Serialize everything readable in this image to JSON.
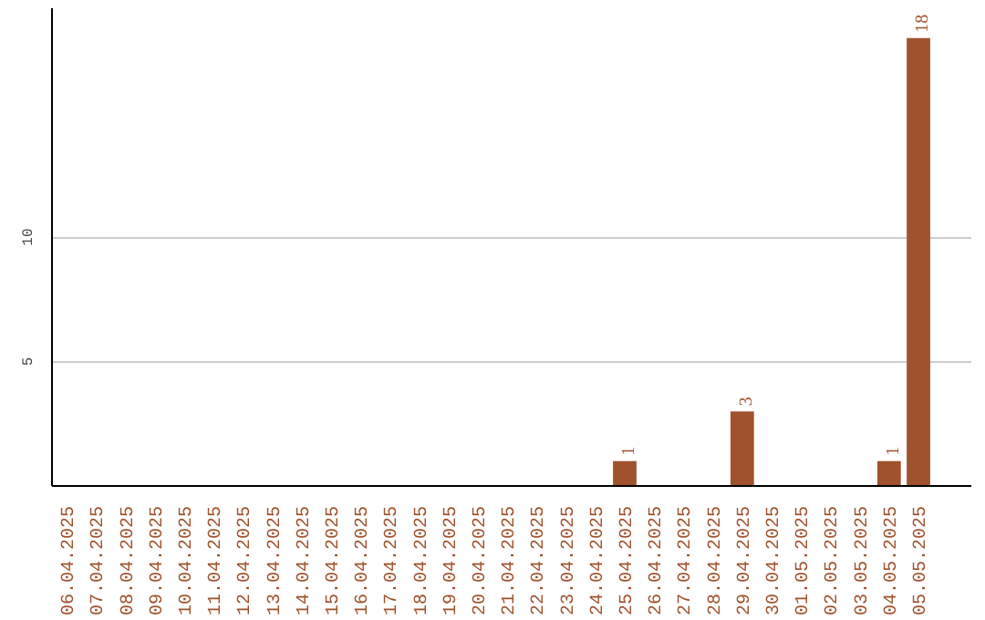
{
  "chart_data": {
    "type": "bar",
    "categories": [
      "06.04.2025",
      "07.04.2025",
      "08.04.2025",
      "09.04.2025",
      "10.04.2025",
      "11.04.2025",
      "12.04.2025",
      "13.04.2025",
      "14.04.2025",
      "15.04.2025",
      "16.04.2025",
      "17.04.2025",
      "18.04.2025",
      "19.04.2025",
      "20.04.2025",
      "21.04.2025",
      "22.04.2025",
      "23.04.2025",
      "24.04.2025",
      "25.04.2025",
      "26.04.2025",
      "27.04.2025",
      "28.04.2025",
      "29.04.2025",
      "30.04.2025",
      "01.05.2025",
      "02.05.2025",
      "03.05.2025",
      "04.05.2025",
      "05.05.2025"
    ],
    "values": [
      0,
      0,
      0,
      0,
      0,
      0,
      0,
      0,
      0,
      0,
      0,
      0,
      0,
      0,
      0,
      0,
      0,
      0,
      0,
      1,
      0,
      0,
      0,
      3,
      0,
      0,
      0,
      0,
      1,
      18
    ],
    "value_labels": [
      null,
      null,
      null,
      null,
      null,
      null,
      null,
      null,
      null,
      null,
      null,
      null,
      null,
      null,
      null,
      null,
      null,
      null,
      null,
      "1",
      null,
      null,
      null,
      "3",
      null,
      null,
      null,
      null,
      "1",
      "18"
    ],
    "color": "#a0522d",
    "ylim": [
      0,
      19.2
    ],
    "yticks": [
      5,
      10
    ],
    "grid": "y"
  }
}
